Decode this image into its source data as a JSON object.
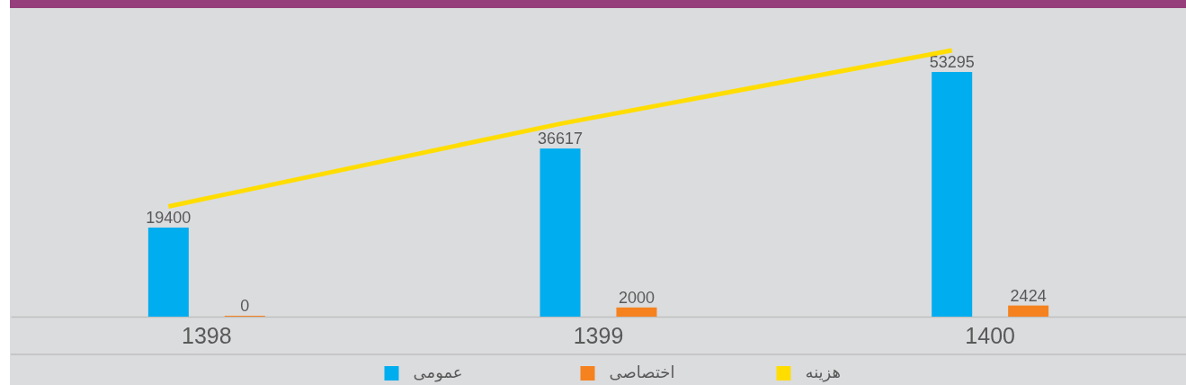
{
  "chart_data": {
    "type": "bar",
    "categories": [
      "1398",
      "1399",
      "1400"
    ],
    "series": [
      {
        "name": "عمومی",
        "color": "#00adef",
        "values": [
          19400,
          36617,
          53295
        ],
        "value_labels": [
          "19400",
          "36617",
          "53295"
        ]
      },
      {
        "name": "اختصاصی",
        "color": "#f5821f",
        "values": [
          0,
          2000,
          2424
        ],
        "value_labels": [
          "0",
          "2000",
          "2424"
        ]
      },
      {
        "name": "هزینه",
        "type": "line",
        "color": "#ffdd00",
        "values": [
          24000,
          42000,
          58000
        ]
      }
    ],
    "legend": "bottom"
  }
}
